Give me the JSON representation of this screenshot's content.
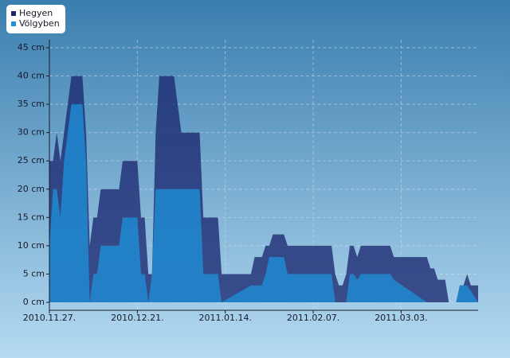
{
  "chart_data": {
    "type": "area",
    "x": [
      "2010.11.27",
      "2010.11.28",
      "2010.11.29",
      "2010.11.30",
      "2010.12.01",
      "2010.12.02",
      "2010.12.03",
      "2010.12.06",
      "2010.12.07",
      "2010.12.08",
      "2010.12.09",
      "2010.12.10",
      "2010.12.11",
      "2010.12.16",
      "2010.12.17",
      "2010.12.21",
      "2010.12.22",
      "2010.12.23",
      "2010.12.24",
      "2010.12.25",
      "2010.12.26",
      "2010.12.27",
      "2010.12.31",
      "2011.01.02",
      "2011.01.07",
      "2011.01.08",
      "2011.01.12",
      "2011.01.13",
      "2011.01.21",
      "2011.01.22",
      "2011.01.24",
      "2011.01.25",
      "2011.01.26",
      "2011.01.27",
      "2011.01.30",
      "2011.01.31",
      "2011.02.12",
      "2011.02.13",
      "2011.02.14",
      "2011.02.15",
      "2011.02.16",
      "2011.02.17",
      "2011.02.18",
      "2011.02.19",
      "2011.02.20",
      "2011.02.28",
      "2011.03.01",
      "2011.03.10",
      "2011.03.11",
      "2011.03.12",
      "2011.03.13",
      "2011.03.15",
      "2011.03.16",
      "2011.03.18",
      "2011.03.19",
      "2011.03.20",
      "2011.03.21",
      "2011.03.22",
      "2011.03.24"
    ],
    "series": [
      {
        "name": "Hegyen",
        "color": "#1b2870",
        "values": [
          25,
          25,
          30,
          25,
          30,
          35,
          40,
          40,
          30,
          10,
          15,
          15,
          20,
          20,
          25,
          25,
          15,
          15,
          5,
          5,
          30,
          40,
          40,
          30,
          30,
          15,
          15,
          5,
          5,
          8,
          8,
          10,
          10,
          12,
          12,
          10,
          10,
          5,
          3,
          3,
          5,
          10,
          10,
          8,
          10,
          10,
          8,
          8,
          6,
          6,
          4,
          4,
          0,
          0,
          3,
          3,
          5,
          3,
          3
        ]
      },
      {
        "name": "Völgyben",
        "color": "#1e90d8",
        "values": [
          10,
          20,
          20,
          15,
          25,
          30,
          35,
          35,
          25,
          0,
          5,
          5,
          10,
          10,
          15,
          15,
          5,
          5,
          0,
          5,
          20,
          20,
          20,
          20,
          20,
          5,
          5,
          0,
          3,
          3,
          3,
          5,
          8,
          8,
          8,
          5,
          5,
          0,
          0,
          0,
          0,
          5,
          5,
          4,
          5,
          5,
          4,
          0,
          0,
          0,
          0,
          0,
          0,
          0,
          3,
          3,
          3,
          2,
          0
        ]
      }
    ],
    "xlim": [
      "2010.11.27",
      "2011.03.24"
    ],
    "xticks": [
      {
        "value": "2010.11.27",
        "label": "2010.11.27."
      },
      {
        "value": "2010.12.21",
        "label": "2010.12.21."
      },
      {
        "value": "2011.01.14",
        "label": "2011.01.14."
      },
      {
        "value": "2011.02.07",
        "label": "2011.02.07."
      },
      {
        "value": "2011.03.03",
        "label": "2011.03.03."
      }
    ],
    "ylim": [
      -1.4,
      46.4
    ],
    "yticks": [
      {
        "value": 0,
        "label": "0 cm"
      },
      {
        "value": 5,
        "label": "5 cm"
      },
      {
        "value": 10,
        "label": "10 cm"
      },
      {
        "value": 15,
        "label": "15 cm"
      },
      {
        "value": 20,
        "label": "20 cm"
      },
      {
        "value": 25,
        "label": "25 cm"
      },
      {
        "value": 30,
        "label": "30 cm"
      },
      {
        "value": 35,
        "label": "35 cm"
      },
      {
        "value": 40,
        "label": "40 cm"
      },
      {
        "value": 45,
        "label": "45 cm"
      }
    ],
    "grid": true
  }
}
